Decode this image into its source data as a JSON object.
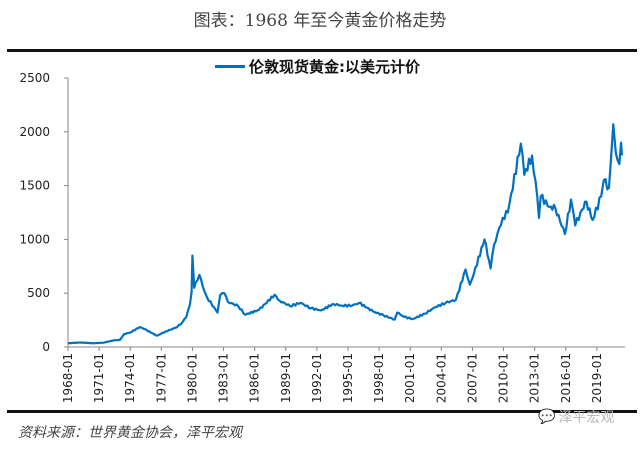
{
  "title": "图表：1968 年至今黄金价格走势",
  "source": "资料来源：世界黄金协会，泽平宏观",
  "watermark": "泽平宏观",
  "chart_data": {
    "type": "line",
    "title": "",
    "xlabel": "",
    "ylabel": "",
    "ylim": [
      0,
      2500
    ],
    "yticks": [
      "0",
      "500",
      "1000",
      "1500",
      "2000",
      "2500"
    ],
    "xticks": [
      "1968-01",
      "1971-01",
      "1974-01",
      "1977-01",
      "1980-01",
      "1983-01",
      "1986-01",
      "1989-01",
      "1992-01",
      "1995-01",
      "1998-01",
      "2001-01",
      "2004-01",
      "2007-01",
      "2010-01",
      "2013-01",
      "2016-01",
      "2019-01"
    ],
    "grid": false,
    "legend": "top",
    "color": "#0070c0",
    "series": [
      {
        "name": "伦敦现货黄金:以美元计价",
        "x": [
          "1968-01",
          "1969-03",
          "1970-06",
          "1971-06",
          "1972-06",
          "1973-01",
          "1973-06",
          "1974-01",
          "1974-12",
          "1975-06",
          "1976-08",
          "1977-06",
          "1978-06",
          "1979-01",
          "1979-06",
          "1979-10",
          "1979-12",
          "1980-01",
          "1980-03",
          "1980-09",
          "1981-01",
          "1981-06",
          "1982-06",
          "1982-09",
          "1983-02",
          "1983-06",
          "1984-06",
          "1985-02",
          "1986-06",
          "1987-12",
          "1988-06",
          "1989-06",
          "1990-06",
          "1991-06",
          "1992-06",
          "1993-08",
          "1994-06",
          "1995-06",
          "1996-02",
          "1997-06",
          "1998-06",
          "1999-07",
          "1999-10",
          "2000-06",
          "2001-04",
          "2002-06",
          "2003-06",
          "2004-06",
          "2005-06",
          "2006-05",
          "2006-10",
          "2007-01",
          "2008-03",
          "2008-10",
          "2009-02",
          "2009-12",
          "2010-06",
          "2011-09",
          "2012-01",
          "2012-10",
          "2013-04",
          "2013-06",
          "2013-08",
          "2014-06",
          "2015-01",
          "2015-12",
          "2016-07",
          "2016-12",
          "2017-06",
          "2018-01",
          "2018-08",
          "2019-06",
          "2019-09",
          "2020-03",
          "2020-08",
          "2020-11",
          "2021-03",
          "2021-05",
          "2021-06"
        ],
        "values": [
          35,
          42,
          35,
          40,
          62,
          65,
          120,
          135,
          185,
          165,
          105,
          145,
          180,
          225,
          280,
          390,
          510,
          850,
          550,
          670,
          560,
          460,
          320,
          480,
          500,
          420,
          380,
          300,
          345,
          485,
          430,
          380,
          410,
          360,
          340,
          400,
          385,
          385,
          410,
          330,
          295,
          255,
          320,
          280,
          260,
          310,
          370,
          410,
          440,
          720,
          580,
          640,
          1000,
          730,
          950,
          1200,
          1250,
          1890,
          1600,
          1780,
          1400,
          1200,
          1400,
          1300,
          1290,
          1050,
          1370,
          1130,
          1250,
          1350,
          1180,
          1400,
          1550,
          1480,
          2070,
          1800,
          1700,
          1900,
          1780
        ]
      }
    ]
  }
}
